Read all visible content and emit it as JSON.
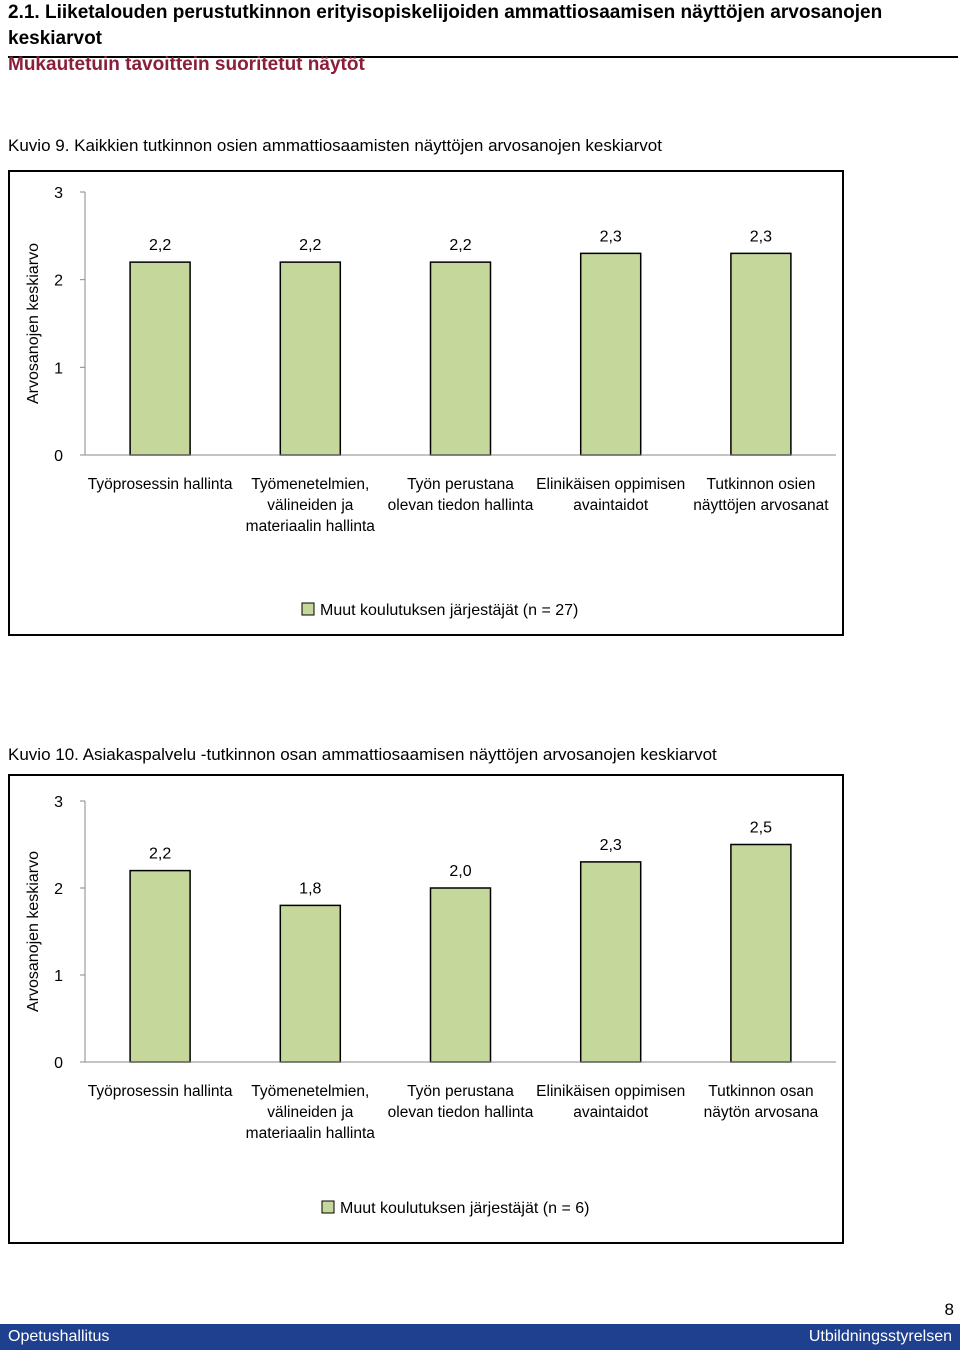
{
  "page": {
    "heading": "2.1. Liiketalouden perustutkinnon erityisopiskelijoiden ammattiosaamisen näyttöjen arvosanojen keskiarvot",
    "subheading": "Mukautetuin tavoittein suoritetut näytöt",
    "page_number": "8",
    "footer_left": "Opetushallitus",
    "footer_right": "Utbildningsstyrelsen",
    "bar_color": "#c5d79a",
    "footer_color": "#1f3f8f"
  },
  "captions": [
    {
      "number": "Kuvio 9.",
      "text": "Kaikkien tutkinnon osien ammattiosaamisten näyttöjen arvosanojen keskiarvot"
    },
    {
      "number": "Kuvio 10.",
      "text": "Asiakaspalvelu -tutkinnon osan ammattiosaamisen näyttöjen arvosanojen keskiarvot"
    }
  ],
  "chart_data": [
    {
      "type": "bar",
      "title": "Kaikkien tutkinnon osien ammattiosaamisten näyttöjen arvosanojen keskiarvot",
      "ylabel": "Arvosanojen keskiarvo",
      "xlabel": "",
      "ylim": [
        0,
        3
      ],
      "yticks": [
        "0",
        "1",
        "2",
        "3"
      ],
      "categories": [
        [
          "Työprosessin hallinta"
        ],
        [
          "Työmenetelmien,",
          "välineiden ja",
          "materiaalin hallinta"
        ],
        [
          "Työn perustana",
          "olevan tiedon hallinta"
        ],
        [
          "Elinikäisen oppimisen",
          "avaintaidot"
        ],
        [
          "Tutkinnon osien",
          "näyttöjen arvosanat"
        ]
      ],
      "series": [
        {
          "name": "Muut koulutuksen järjestäjät (n = 27)",
          "values": [
            2.2,
            2.2,
            2.2,
            2.3,
            2.3
          ]
        }
      ],
      "data_labels": [
        "2,2",
        "2,2",
        "2,2",
        "2,3",
        "2,3"
      ],
      "legend": "bottom"
    },
    {
      "type": "bar",
      "title": "Asiakaspalvelu -tutkinnon osan ammattiosaamisen näyttöjen arvosanojen keskiarvot",
      "ylabel": "Arvosanojen keskiarvo",
      "xlabel": "",
      "ylim": [
        0,
        3
      ],
      "yticks": [
        "0",
        "1",
        "2",
        "3"
      ],
      "categories": [
        [
          "Työprosessin hallinta"
        ],
        [
          "Työmenetelmien,",
          "välineiden ja",
          "materiaalin hallinta"
        ],
        [
          "Työn perustana",
          "olevan tiedon hallinta"
        ],
        [
          "Elinikäisen oppimisen",
          "avaintaidot"
        ],
        [
          "Tutkinnon osan",
          "näytön arvosana"
        ]
      ],
      "series": [
        {
          "name": "Muut koulutuksen järjestäjät (n = 6)",
          "values": [
            2.2,
            1.8,
            2.0,
            2.3,
            2.5
          ]
        }
      ],
      "data_labels": [
        "2,2",
        "1,8",
        "2,0",
        "2,3",
        "2,5"
      ],
      "legend": "bottom"
    }
  ]
}
